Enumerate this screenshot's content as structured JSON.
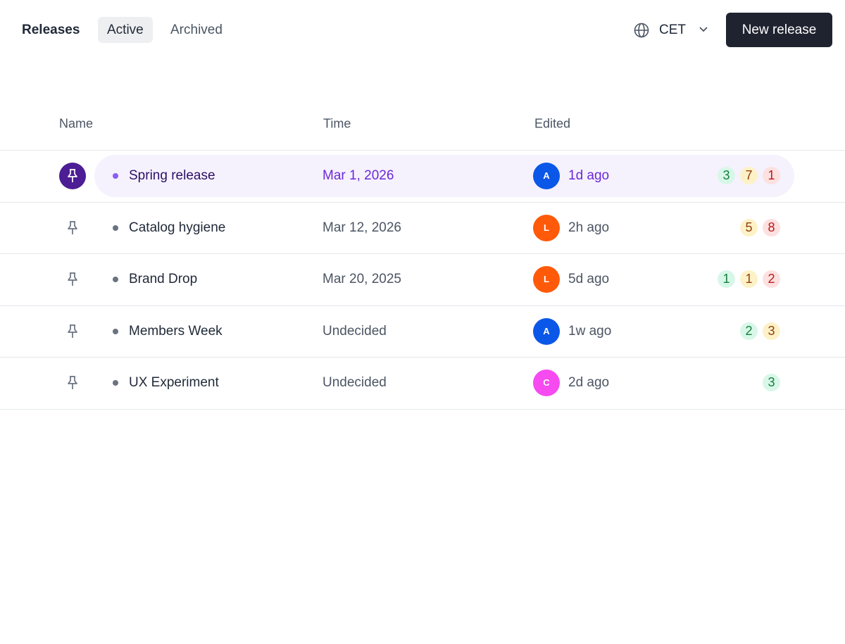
{
  "header": {
    "title": "Releases",
    "tabs": [
      "Active",
      "Archived"
    ],
    "active_tab": 0,
    "timezone": "CET",
    "button": "New release"
  },
  "table": {
    "columns": [
      "Name",
      "Time",
      "Edited"
    ],
    "rows": [
      {
        "name": "Spring release",
        "time": "Mar 1, 2026",
        "avatar": "A",
        "avatar_color": "#0b57e8",
        "edited": "1d ago",
        "badges": {
          "green": 3,
          "yellow": 7,
          "red": 1
        },
        "pinned": true,
        "selected": true
      },
      {
        "name": "Catalog hygiene",
        "time": "Mar 12, 2026",
        "avatar": "L",
        "avatar_color": "#ff5a0a",
        "edited": "2h ago",
        "badges": {
          "yellow": 5,
          "red": 8
        },
        "pinned": false,
        "selected": false
      },
      {
        "name": "Brand Drop",
        "time": "Mar 20, 2025",
        "avatar": "L",
        "avatar_color": "#ff5a0a",
        "edited": "5d ago",
        "badges": {
          "green": 1,
          "yellow": 1,
          "red": 2
        },
        "pinned": false,
        "selected": false
      },
      {
        "name": "Members Week",
        "time": "Undecided",
        "avatar": "A",
        "avatar_color": "#0b57e8",
        "edited": "1w ago",
        "badges": {
          "green": 2,
          "yellow": 3
        },
        "pinned": false,
        "selected": false
      },
      {
        "name": "UX Experiment",
        "time": "Undecided",
        "avatar": "C",
        "avatar_color": "#f54bf0",
        "edited": "2d ago",
        "badges": {
          "green": 3
        },
        "pinned": false,
        "selected": false
      }
    ]
  }
}
